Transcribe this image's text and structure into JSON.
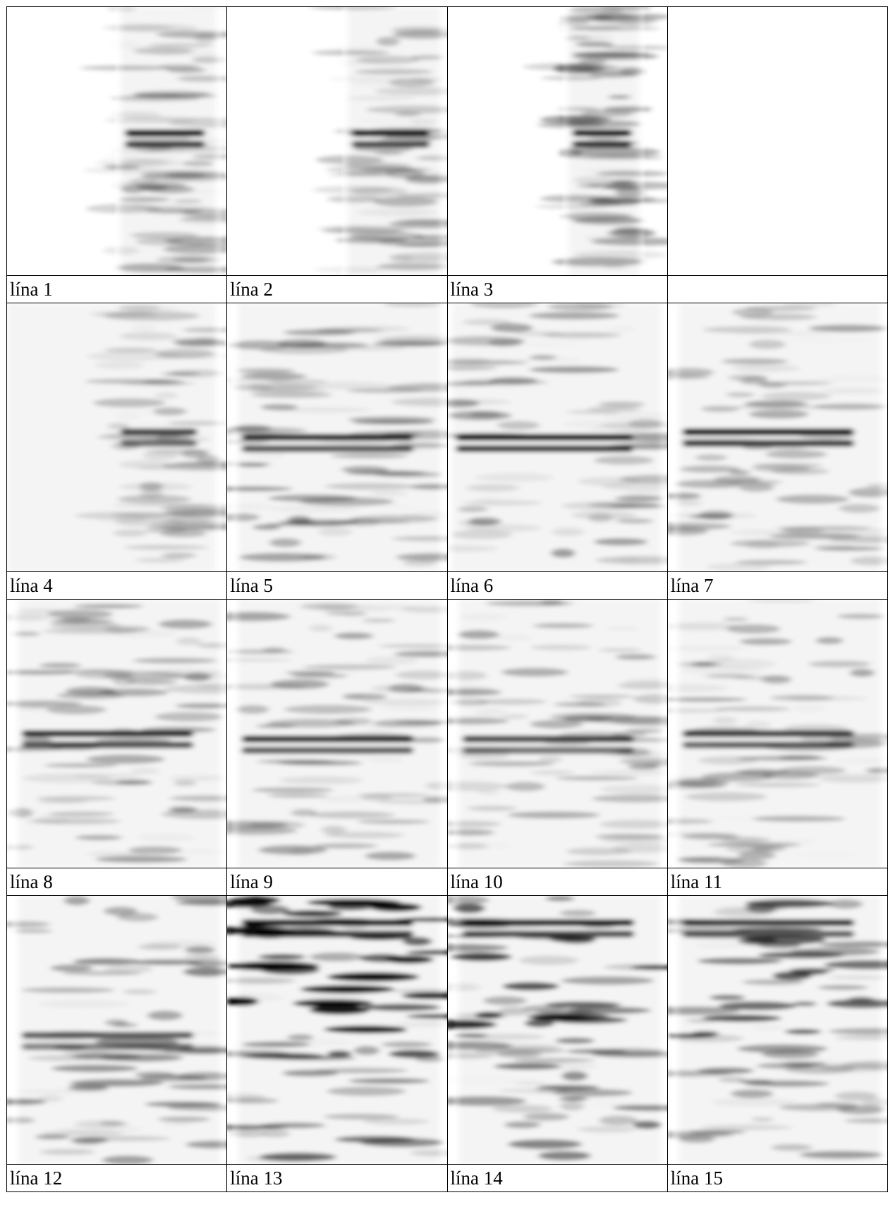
{
  "panels": [
    {
      "label": "lína 1"
    },
    {
      "label": "lína 2"
    },
    {
      "label": "lína 3"
    },
    {
      "label": "lína 4"
    },
    {
      "label": "lína 5"
    },
    {
      "label": "lína 6"
    },
    {
      "label": "lína 7"
    },
    {
      "label": "lína 8"
    },
    {
      "label": "lína 9"
    },
    {
      "label": "lína 10"
    },
    {
      "label": "lína 11"
    },
    {
      "label": "lína 12"
    },
    {
      "label": "lína 13"
    },
    {
      "label": "lína 14"
    },
    {
      "label": "lína 15"
    }
  ]
}
